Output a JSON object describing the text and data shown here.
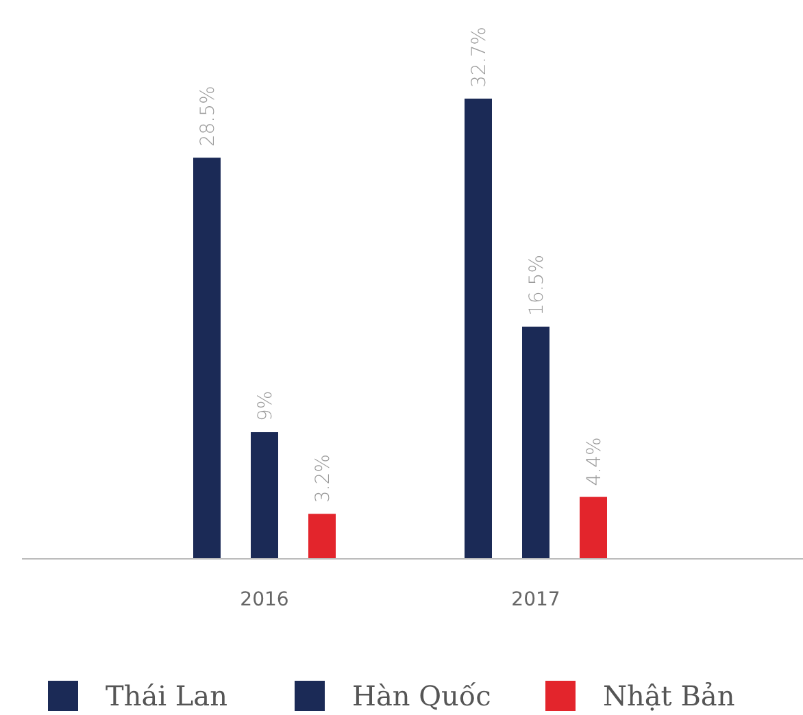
{
  "chart_data": {
    "type": "bar",
    "categories": [
      "2016",
      "2017"
    ],
    "series": [
      {
        "name": "Thái Lan",
        "color": "#1b2a56",
        "values": [
          28.5,
          32.7
        ],
        "value_labels": [
          "28.5%",
          "32.7%"
        ]
      },
      {
        "name": "Hàn Quốc",
        "color": "#1b2a56",
        "values": [
          9,
          16.5
        ],
        "value_labels": [
          "9%",
          "16.5%"
        ]
      },
      {
        "name": "Nhật Bản",
        "color": "#e3252c",
        "values": [
          3.2,
          4.4
        ],
        "value_labels": [
          "3.2%",
          "4.4%"
        ]
      }
    ],
    "legend": "bottom"
  }
}
